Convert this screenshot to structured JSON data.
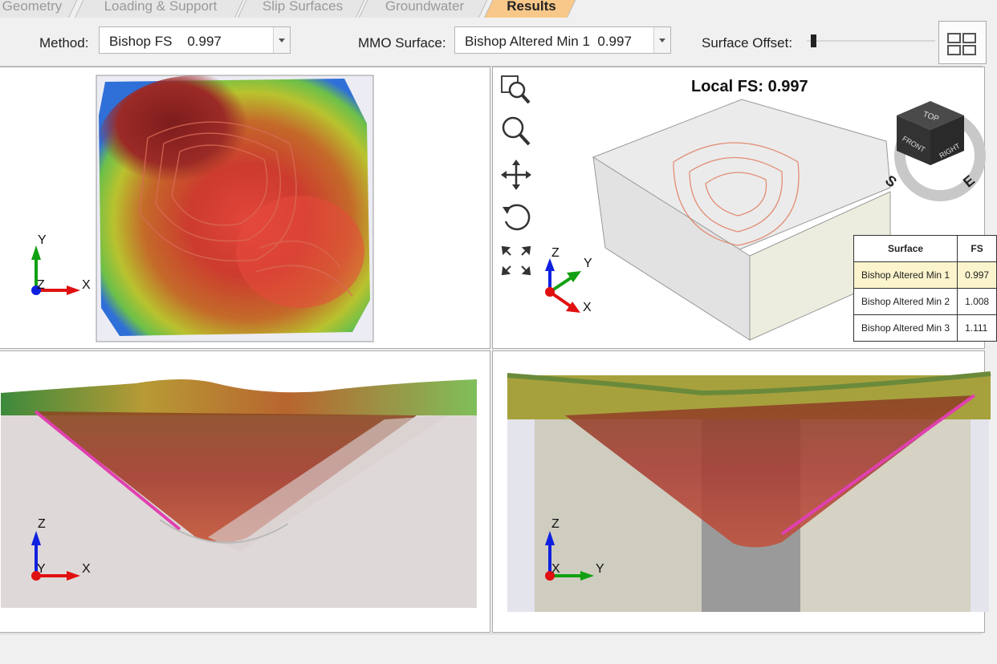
{
  "tabs": [
    {
      "label": "Geometry",
      "active": false
    },
    {
      "label": "Loading & Support",
      "active": false
    },
    {
      "label": "Slip Surfaces",
      "active": false
    },
    {
      "label": "Groundwater",
      "active": false
    },
    {
      "label": "Results",
      "active": true
    }
  ],
  "toolbar": {
    "method_label": "Method:",
    "method_value": "Bishop FS    0.997",
    "mmo_label": "MMO Surface:",
    "mmo_value": "Bishop Altered Min 1  0.997",
    "offset_label": "Surface Offset:",
    "offset_level": 0.03
  },
  "view3d": {
    "local_fs_label": "Local FS: 0.997",
    "tools": [
      "zoom-window-icon",
      "zoom-icon",
      "pan-icon",
      "rotate-icon",
      "zoom-extents-icon"
    ],
    "viewcube": {
      "top": "TOP",
      "front": "FRONT",
      "right": "RIGHT",
      "compass_s": "S",
      "compass_e": "E"
    }
  },
  "fs_table": {
    "headers": [
      "Surface",
      "FS"
    ],
    "rows": [
      {
        "surface": "Bishop Altered Min 1",
        "fs": "0.997",
        "selected": true
      },
      {
        "surface": "Bishop Altered Min 2",
        "fs": "1.008",
        "selected": false
      },
      {
        "surface": "Bishop Altered Min 3",
        "fs": "1.111",
        "selected": false
      }
    ]
  },
  "axes": {
    "x": "X",
    "y": "Y",
    "z": "Z"
  },
  "colors": {
    "x_axis": "#e01010",
    "y_axis": "#12a012",
    "z_axis": "#1020e0",
    "active_tab": "#f8c88a",
    "selected_row": "#fbf4cc"
  }
}
